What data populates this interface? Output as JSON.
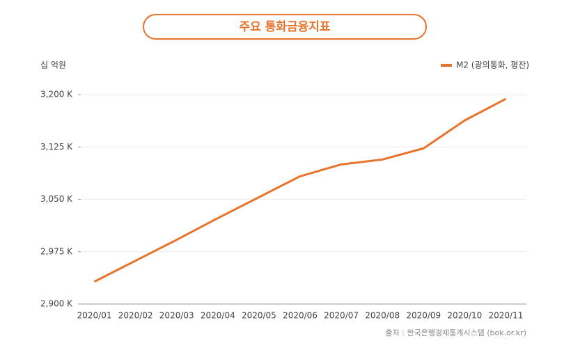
{
  "chart_data": {
    "type": "line",
    "title": "주요 통화금융지표",
    "y_unit": "십 억원",
    "source": "출처 : 한국은행경제통계시스템 (bok.or.kr)",
    "categories": [
      "2020/01",
      "2020/02",
      "2020/03",
      "2020/04",
      "2020/05",
      "2020/06",
      "2020/07",
      "2020/08",
      "2020/09",
      "2020/10",
      "2020/11"
    ],
    "series": [
      {
        "name": "M2 (광의통화, 평잔)",
        "color": "#e8732a",
        "values": [
          2932,
          2962,
          2992,
          3023,
          3053,
          3083,
          3100,
          3107,
          3123,
          3163,
          3194
        ]
      }
    ],
    "ylim": [
      2900,
      3200
    ],
    "yticks": [
      {
        "value": 2900,
        "label": "2,900 K"
      },
      {
        "value": 2975,
        "label": "2,975 K"
      },
      {
        "value": 3050,
        "label": "3,050 K"
      },
      {
        "value": 3125,
        "label": "3,125 K"
      },
      {
        "value": 3200,
        "label": "3,200 K"
      }
    ],
    "grid": true,
    "legend": "top-right"
  }
}
